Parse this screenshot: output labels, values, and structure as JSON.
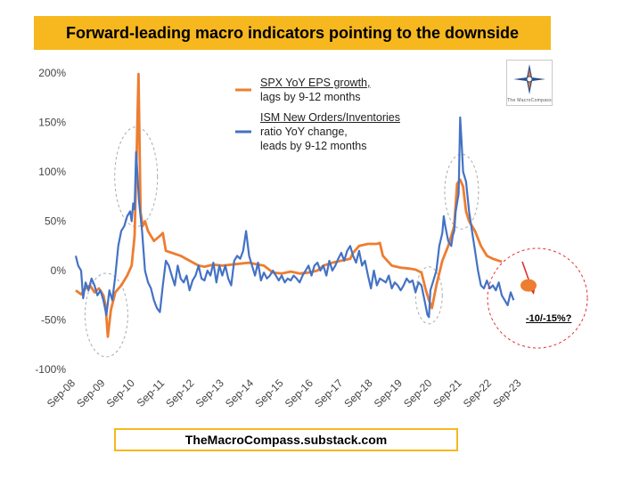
{
  "title": "Forward-leading macro indicators pointing to the downside",
  "footer": "TheMacroCompass.substack.com",
  "logo": {
    "icon": "compass-star-icon",
    "text": "The MacroCompass"
  },
  "legend": {
    "spx": {
      "line1": "SPX YoY EPS growth,",
      "line2": "lags by 9-12 months"
    },
    "ism": {
      "line1": "ISM New Orders/Inventories",
      "line2": "ratio YoY change,",
      "line3": "leads by 9-12 months"
    }
  },
  "annotation": "-10/-15%?",
  "colors": {
    "spx": "#ed7d31",
    "ism": "#4472c4",
    "title_bg": "#f6b81e",
    "forecast": "#e03030"
  },
  "chart_data": {
    "type": "line",
    "title": "Forward-leading macro indicators pointing to the downside",
    "ylim": [
      -100,
      200
    ],
    "yticks": [
      200,
      150,
      100,
      50,
      0,
      -50,
      -100
    ],
    "ytick_labels": [
      "200%",
      "150%",
      "100%",
      "50%",
      "0%",
      "-50%",
      "-100%"
    ],
    "xlim": [
      2008.67,
      2024.2
    ],
    "xticks": [
      2008.67,
      2009.67,
      2010.67,
      2011.67,
      2012.67,
      2013.67,
      2014.67,
      2015.67,
      2016.67,
      2017.67,
      2018.67,
      2019.67,
      2020.67,
      2021.67,
      2022.67,
      2023.67
    ],
    "xtick_labels": [
      "Sep-08",
      "Sep-09",
      "Sep-10",
      "Sep-11",
      "Sep-12",
      "Sep-13",
      "Sep-14",
      "Sep-15",
      "Sep-16",
      "Sep-17",
      "Sep-18",
      "Sep-19",
      "Sep-20",
      "Sep-21",
      "Sep-22",
      "Sep-23"
    ],
    "series": [
      {
        "name": "SPX YoY EPS growth, lags by 9-12 months",
        "color": "#ed7d31",
        "points": [
          [
            2008.67,
            -20
          ],
          [
            2008.85,
            -24
          ],
          [
            2009.0,
            -18
          ],
          [
            2009.15,
            -15
          ],
          [
            2009.3,
            -22
          ],
          [
            2009.45,
            -18
          ],
          [
            2009.6,
            -25
          ],
          [
            2009.67,
            -35
          ],
          [
            2009.75,
            -67
          ],
          [
            2009.85,
            -40
          ],
          [
            2010.0,
            -22
          ],
          [
            2010.2,
            -15
          ],
          [
            2010.4,
            -5
          ],
          [
            2010.55,
            5
          ],
          [
            2010.65,
            35
          ],
          [
            2010.72,
            120
          ],
          [
            2010.78,
            199
          ],
          [
            2010.85,
            60
          ],
          [
            2010.92,
            45
          ],
          [
            2011.0,
            50
          ],
          [
            2011.1,
            40
          ],
          [
            2011.3,
            30
          ],
          [
            2011.5,
            35
          ],
          [
            2011.6,
            38
          ],
          [
            2011.7,
            20
          ],
          [
            2011.9,
            18
          ],
          [
            2012.2,
            15
          ],
          [
            2012.5,
            10
          ],
          [
            2012.8,
            5
          ],
          [
            2013.0,
            4
          ],
          [
            2013.3,
            6
          ],
          [
            2013.6,
            5
          ],
          [
            2013.9,
            6
          ],
          [
            2014.2,
            7
          ],
          [
            2014.5,
            8
          ],
          [
            2014.8,
            6
          ],
          [
            2015.0,
            5
          ],
          [
            2015.3,
            -2
          ],
          [
            2015.6,
            -3
          ],
          [
            2015.9,
            -1
          ],
          [
            2016.2,
            -3
          ],
          [
            2016.5,
            -2
          ],
          [
            2016.8,
            0
          ],
          [
            2017.0,
            5
          ],
          [
            2017.3,
            8
          ],
          [
            2017.6,
            10
          ],
          [
            2017.9,
            12
          ],
          [
            2018.0,
            18
          ],
          [
            2018.2,
            25
          ],
          [
            2018.5,
            27
          ],
          [
            2018.8,
            27
          ],
          [
            2018.9,
            28
          ],
          [
            2019.0,
            15
          ],
          [
            2019.3,
            5
          ],
          [
            2019.6,
            3
          ],
          [
            2019.9,
            2
          ],
          [
            2020.1,
            1
          ],
          [
            2020.3,
            -2
          ],
          [
            2020.45,
            -20
          ],
          [
            2020.55,
            -30
          ],
          [
            2020.65,
            -38
          ],
          [
            2020.8,
            -15
          ],
          [
            2021.0,
            10
          ],
          [
            2021.2,
            25
          ],
          [
            2021.4,
            45
          ],
          [
            2021.5,
            88
          ],
          [
            2021.6,
            92
          ],
          [
            2021.7,
            85
          ],
          [
            2021.8,
            60
          ],
          [
            2021.9,
            50
          ],
          [
            2022.1,
            40
          ],
          [
            2022.3,
            25
          ],
          [
            2022.5,
            15
          ],
          [
            2022.7,
            12
          ],
          [
            2022.9,
            10
          ],
          [
            2023.0,
            9
          ]
        ]
      },
      {
        "name": "ISM New Orders/Inventories ratio YoY change, leads by 9-12 months",
        "color": "#4472c4",
        "points": [
          [
            2008.67,
            15
          ],
          [
            2008.75,
            5
          ],
          [
            2008.85,
            0
          ],
          [
            2008.92,
            -28
          ],
          [
            2009.0,
            -12
          ],
          [
            2009.1,
            -20
          ],
          [
            2009.2,
            -8
          ],
          [
            2009.3,
            -15
          ],
          [
            2009.4,
            -25
          ],
          [
            2009.5,
            -20
          ],
          [
            2009.6,
            -30
          ],
          [
            2009.7,
            -45
          ],
          [
            2009.8,
            -20
          ],
          [
            2009.9,
            -30
          ],
          [
            2010.0,
            -5
          ],
          [
            2010.1,
            25
          ],
          [
            2010.2,
            40
          ],
          [
            2010.3,
            45
          ],
          [
            2010.4,
            55
          ],
          [
            2010.5,
            60
          ],
          [
            2010.55,
            50
          ],
          [
            2010.6,
            68
          ],
          [
            2010.65,
            62
          ],
          [
            2010.7,
            120
          ],
          [
            2010.8,
            70
          ],
          [
            2010.9,
            40
          ],
          [
            2011.0,
            0
          ],
          [
            2011.1,
            -12
          ],
          [
            2011.2,
            -18
          ],
          [
            2011.3,
            -30
          ],
          [
            2011.4,
            -38
          ],
          [
            2011.5,
            -42
          ],
          [
            2011.6,
            -15
          ],
          [
            2011.7,
            10
          ],
          [
            2011.8,
            5
          ],
          [
            2011.9,
            -5
          ],
          [
            2012.0,
            -15
          ],
          [
            2012.1,
            5
          ],
          [
            2012.2,
            -8
          ],
          [
            2012.3,
            -12
          ],
          [
            2012.4,
            -5
          ],
          [
            2012.5,
            -20
          ],
          [
            2012.6,
            -10
          ],
          [
            2012.7,
            -5
          ],
          [
            2012.8,
            5
          ],
          [
            2012.9,
            -8
          ],
          [
            2013.0,
            -10
          ],
          [
            2013.1,
            0
          ],
          [
            2013.2,
            -5
          ],
          [
            2013.3,
            8
          ],
          [
            2013.4,
            -12
          ],
          [
            2013.5,
            5
          ],
          [
            2013.6,
            -5
          ],
          [
            2013.7,
            5
          ],
          [
            2013.8,
            -8
          ],
          [
            2013.9,
            -15
          ],
          [
            2014.0,
            10
          ],
          [
            2014.1,
            15
          ],
          [
            2014.2,
            12
          ],
          [
            2014.3,
            20
          ],
          [
            2014.4,
            40
          ],
          [
            2014.5,
            15
          ],
          [
            2014.6,
            5
          ],
          [
            2014.7,
            -5
          ],
          [
            2014.8,
            8
          ],
          [
            2014.9,
            -10
          ],
          [
            2015.0,
            -2
          ],
          [
            2015.1,
            -8
          ],
          [
            2015.2,
            -5
          ],
          [
            2015.3,
            0
          ],
          [
            2015.4,
            -5
          ],
          [
            2015.5,
            -10
          ],
          [
            2015.6,
            -5
          ],
          [
            2015.7,
            -12
          ],
          [
            2015.8,
            -8
          ],
          [
            2015.9,
            -10
          ],
          [
            2016.0,
            -5
          ],
          [
            2016.1,
            -8
          ],
          [
            2016.2,
            -12
          ],
          [
            2016.3,
            -5
          ],
          [
            2016.4,
            0
          ],
          [
            2016.5,
            5
          ],
          [
            2016.6,
            -5
          ],
          [
            2016.7,
            5
          ],
          [
            2016.8,
            8
          ],
          [
            2016.9,
            0
          ],
          [
            2017.0,
            5
          ],
          [
            2017.1,
            -5
          ],
          [
            2017.2,
            10
          ],
          [
            2017.3,
            0
          ],
          [
            2017.4,
            5
          ],
          [
            2017.5,
            12
          ],
          [
            2017.6,
            18
          ],
          [
            2017.7,
            10
          ],
          [
            2017.8,
            20
          ],
          [
            2017.9,
            25
          ],
          [
            2018.0,
            15
          ],
          [
            2018.1,
            8
          ],
          [
            2018.2,
            20
          ],
          [
            2018.3,
            5
          ],
          [
            2018.4,
            10
          ],
          [
            2018.5,
            -5
          ],
          [
            2018.6,
            -18
          ],
          [
            2018.7,
            0
          ],
          [
            2018.8,
            -15
          ],
          [
            2018.9,
            -8
          ],
          [
            2019.0,
            -10
          ],
          [
            2019.1,
            -12
          ],
          [
            2019.2,
            -5
          ],
          [
            2019.3,
            -18
          ],
          [
            2019.4,
            -12
          ],
          [
            2019.5,
            -15
          ],
          [
            2019.6,
            -20
          ],
          [
            2019.7,
            -15
          ],
          [
            2019.8,
            -8
          ],
          [
            2019.9,
            -12
          ],
          [
            2020.0,
            -10
          ],
          [
            2020.1,
            -22
          ],
          [
            2020.2,
            -12
          ],
          [
            2020.3,
            -15
          ],
          [
            2020.4,
            -30
          ],
          [
            2020.5,
            -45
          ],
          [
            2020.55,
            -47
          ],
          [
            2020.6,
            -20
          ],
          [
            2020.7,
            -10
          ],
          [
            2020.8,
            0
          ],
          [
            2020.9,
            25
          ],
          [
            2021.0,
            38
          ],
          [
            2021.05,
            55
          ],
          [
            2021.1,
            45
          ],
          [
            2021.2,
            30
          ],
          [
            2021.3,
            25
          ],
          [
            2021.35,
            35
          ],
          [
            2021.4,
            40
          ],
          [
            2021.45,
            60
          ],
          [
            2021.55,
            78
          ],
          [
            2021.6,
            155
          ],
          [
            2021.65,
            130
          ],
          [
            2021.7,
            100
          ],
          [
            2021.8,
            90
          ],
          [
            2021.9,
            60
          ],
          [
            2022.0,
            40
          ],
          [
            2022.1,
            20
          ],
          [
            2022.2,
            0
          ],
          [
            2022.3,
            -15
          ],
          [
            2022.4,
            -18
          ],
          [
            2022.5,
            -10
          ],
          [
            2022.6,
            -18
          ],
          [
            2022.7,
            -15
          ],
          [
            2022.8,
            -20
          ],
          [
            2022.9,
            -12
          ],
          [
            2023.0,
            -25
          ],
          [
            2023.1,
            -30
          ],
          [
            2023.2,
            -35
          ],
          [
            2023.3,
            -22
          ],
          [
            2023.4,
            -30
          ]
        ]
      }
    ],
    "forecast_point": {
      "x": 2023.9,
      "y": -15,
      "label": "-10/-15%?"
    },
    "highlight_regions": [
      {
        "x": 2009.7,
        "y": -45
      },
      {
        "x": 2010.7,
        "y": 95
      },
      {
        "x": 2020.55,
        "y": -25
      },
      {
        "x": 2021.65,
        "y": 80
      }
    ]
  }
}
